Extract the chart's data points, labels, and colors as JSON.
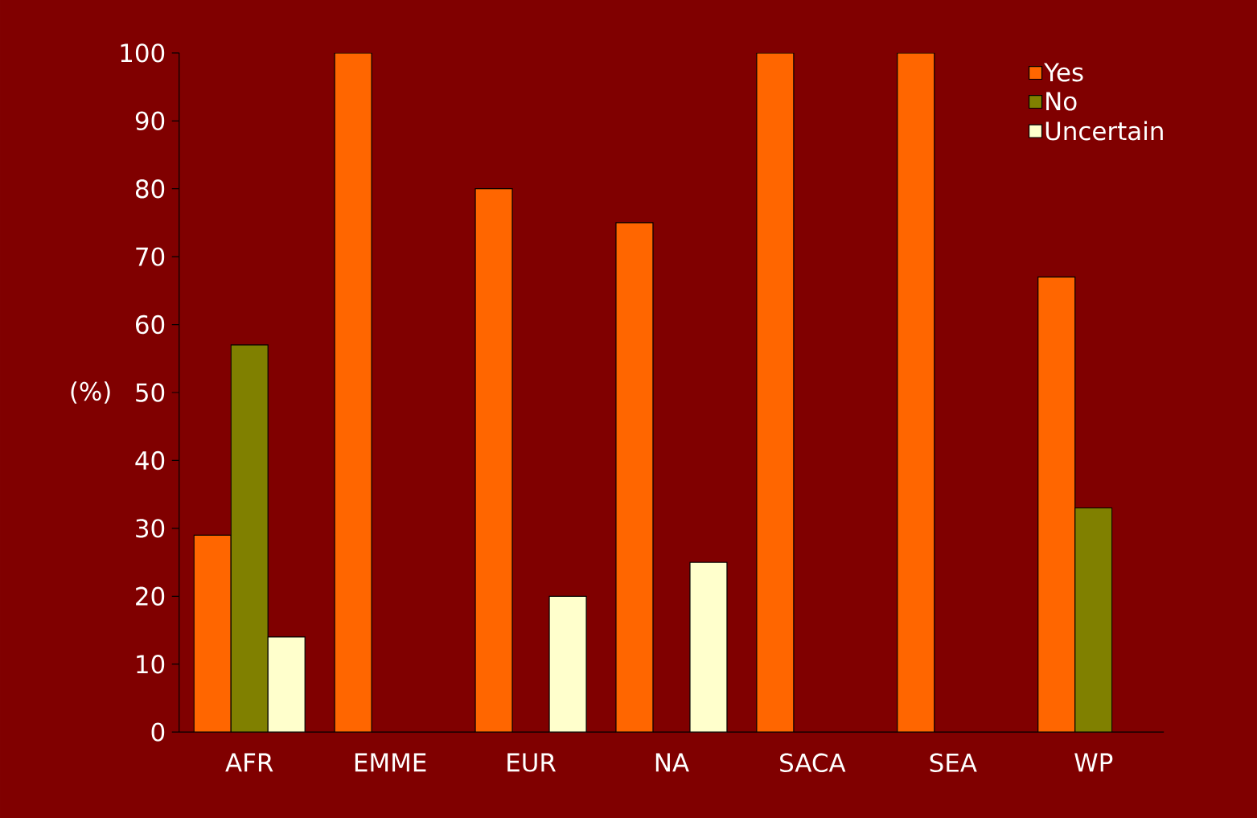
{
  "chart_data": {
    "type": "bar",
    "ylabel": "(%)",
    "categories": [
      "AFR",
      "EMME",
      "EUR",
      "NA",
      "SACA",
      "SEA",
      "WP"
    ],
    "series": [
      {
        "name": "Yes",
        "color": "#ff6600",
        "values": [
          29,
          100,
          80,
          75,
          100,
          100,
          67
        ]
      },
      {
        "name": "No",
        "color": "#808000",
        "values": [
          57,
          null,
          null,
          null,
          null,
          null,
          33
        ]
      },
      {
        "name": "Uncertain",
        "color": "#ffffcc",
        "values": [
          14,
          null,
          20,
          25,
          null,
          null,
          null
        ]
      }
    ],
    "ylim": [
      0,
      100
    ],
    "yticks": [
      0,
      10,
      20,
      30,
      40,
      50,
      60,
      70,
      80,
      90,
      100
    ],
    "legend": "top right"
  }
}
